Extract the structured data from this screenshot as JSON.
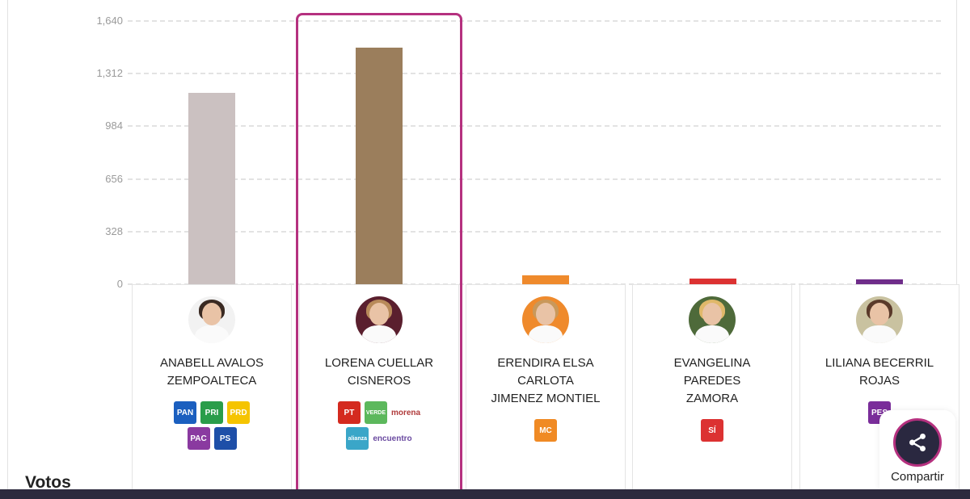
{
  "chart_data": {
    "type": "bar",
    "title": "",
    "xlabel": "",
    "ylabel": "Votos",
    "ylim": [
      0,
      1640
    ],
    "y_ticks": [
      0,
      328,
      656,
      984,
      1312,
      1640
    ],
    "y_tick_labels": [
      "0",
      "328",
      "656",
      "984",
      "1,312",
      "1,640"
    ],
    "grid": true,
    "categories": [
      "ANABELL AVALOS ZEMPOALTECA",
      "LORENA CUELLAR CISNEROS",
      "ERENDIRA ELSA CARLOTA JIMENEZ MONTIEL",
      "EVANGELINA PAREDES ZAMORA",
      "LILIANA BECERRIL ROJAS"
    ],
    "values": [
      1192,
      1474,
      55,
      35,
      28
    ],
    "colors": [
      "#cbc1c1",
      "#9b7e5c",
      "#ef8a2c",
      "#dc3232",
      "#6f2d8a"
    ],
    "highlighted_index": 1
  },
  "axis": {
    "labels": [
      "1,640",
      "1,312",
      "984",
      "656",
      "328",
      "0"
    ]
  },
  "candidates": [
    {
      "name_lines": [
        "ANABELL AVALOS",
        "ZEMPOALTECA"
      ],
      "avatar_bg": "#f2f2f2",
      "hair": "#3a2a22",
      "parties": [
        {
          "label": "PAN",
          "color": "#1b5fbf"
        },
        {
          "label": "PRI",
          "color": "#2a9d4a"
        },
        {
          "label": "PRD",
          "color": "#f5c400"
        },
        {
          "label": "PAC",
          "color": "#8a3aa0"
        },
        {
          "label": "PS",
          "color": "#1e4fa8"
        }
      ]
    },
    {
      "name_lines": [
        "LORENA CUELLAR",
        "CISNEROS"
      ],
      "avatar_bg": "#5a1f2e",
      "hair": "#b88a5a",
      "parties": [
        {
          "label": "PT",
          "color": "#d42a1f"
        },
        {
          "label": "VERDE",
          "color": "#5cb85c"
        },
        {
          "label": "morena",
          "color": "#b03a3a",
          "text": true
        },
        {
          "label": "alianza",
          "color": "#3aa6c8"
        },
        {
          "label": "encuentro",
          "color": "#6a4aa0",
          "text": true
        }
      ]
    },
    {
      "name_lines": [
        "ERENDIRA ELSA",
        "CARLOTA",
        "JIMENEZ MONTIEL"
      ],
      "avatar_bg": "#ef8a2c",
      "hair": "#c9985a",
      "parties": [
        {
          "label": "MC",
          "color": "#f08a24"
        }
      ]
    },
    {
      "name_lines": [
        "EVANGELINA",
        "PAREDES",
        "ZAMORA"
      ],
      "avatar_bg": "#4e6a3a",
      "hair": "#e0b86a",
      "parties": [
        {
          "label": "SÍ",
          "color": "#dc3232"
        }
      ]
    },
    {
      "name_lines": [
        "LILIANA BECERRIL",
        "ROJAS"
      ],
      "avatar_bg": "#c9c2a0",
      "hair": "#5a3a2a",
      "parties": [
        {
          "label": "PES",
          "color": "#7a2d9a"
        }
      ]
    }
  ],
  "section_label": "Votos",
  "share": {
    "label": "Compartir",
    "icon": "share-icon"
  }
}
